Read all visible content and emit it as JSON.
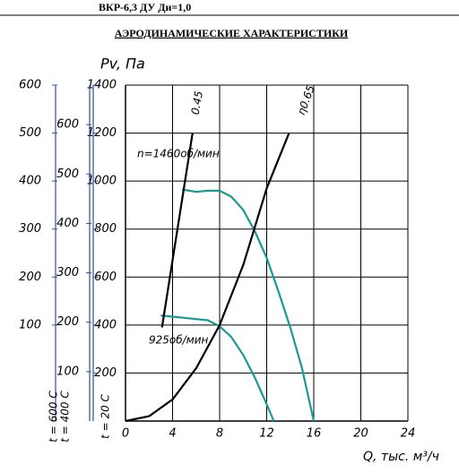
{
  "chart_data": {
    "type": "line",
    "header": "ВКР-6,3 ДУ Ди=1,0",
    "title": "АЭРОДИНАМИЧЕСКИЕ ХАРАКТЕРИСТИКИ",
    "ylabel": "Pv, Па",
    "xlabel": "Q, тыс. м³/ч",
    "yaxis_label": "t = 20 C",
    "xlim": [
      0,
      24
    ],
    "xticks": [
      0,
      4,
      8,
      12,
      16,
      20,
      24
    ],
    "ylim": [
      0,
      1400
    ],
    "yticks": [
      200,
      400,
      600,
      800,
      1000,
      1200,
      1400
    ],
    "grid": true,
    "extra_axes": [
      {
        "label": "t = 600 C",
        "ylim": [
          -100,
          600
        ],
        "yticks": [
          100,
          200,
          300,
          400,
          500,
          600
        ]
      },
      {
        "label": "t = 400 C",
        "ylim": [
          0,
          680
        ],
        "yticks": [
          100,
          200,
          300,
          400,
          500,
          600
        ]
      }
    ],
    "series": [
      {
        "name": "n=1460об/мин",
        "color": "#1a9a96",
        "x": [
          4.8,
          6,
          7,
          8,
          9,
          10,
          11,
          12,
          13,
          14,
          15,
          16
        ],
        "values": [
          965,
          955,
          960,
          960,
          935,
          880,
          790,
          680,
          540,
          390,
          220,
          0
        ]
      },
      {
        "name": "925об/мин",
        "color": "#1a9a96",
        "x": [
          3,
          4,
          5,
          6,
          7,
          8,
          9,
          10,
          11,
          12,
          12.6
        ],
        "values": [
          440,
          435,
          430,
          425,
          420,
          395,
          350,
          275,
          180,
          70,
          0
        ]
      },
      {
        "name": "0.45",
        "color": "#000000",
        "x": [
          3.1,
          5.7
        ],
        "values": [
          390,
          1200
        ]
      },
      {
        "name": "η0.65",
        "color": "#000000",
        "x": [
          0,
          2,
          4,
          6,
          8,
          10,
          12,
          13.9
        ],
        "values": [
          0,
          20,
          90,
          220,
          400,
          650,
          970,
          1200
        ]
      }
    ]
  }
}
